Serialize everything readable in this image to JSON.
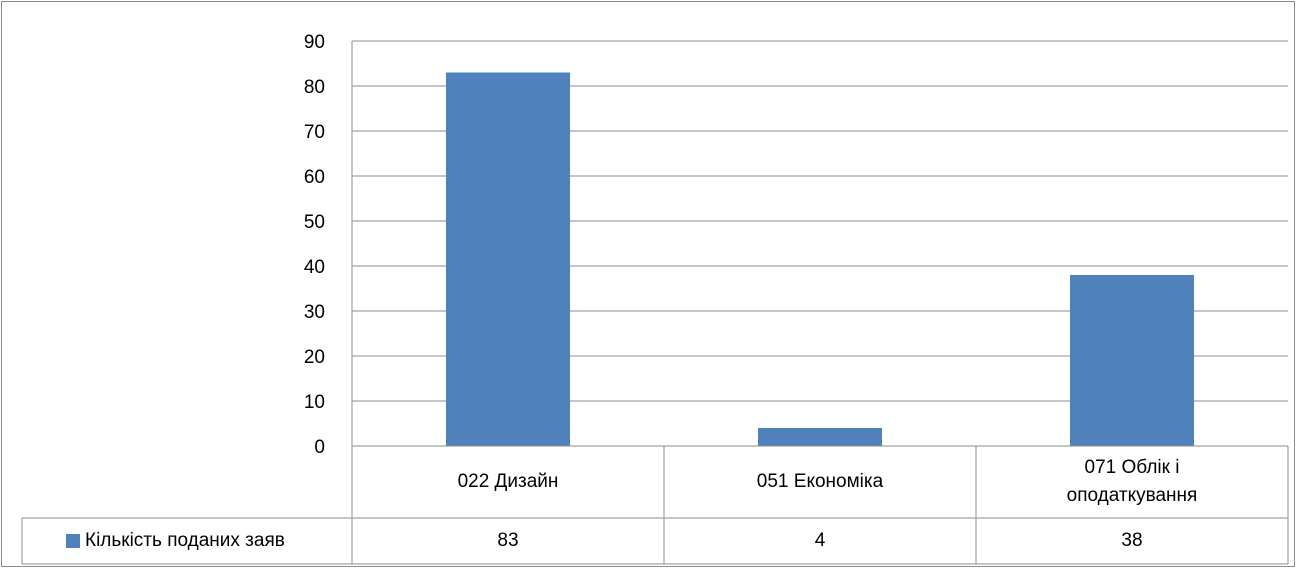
{
  "chart_data": {
    "type": "bar",
    "categories": [
      "022 Дизайн",
      "051 Економіка",
      "071 Облік і оподаткування"
    ],
    "series": [
      {
        "name": "Кількість поданих заяв",
        "values": [
          83,
          4,
          38
        ]
      }
    ],
    "series_label_shown": "Кількість поданих заяв",
    "value_labels": [
      "83",
      "4",
      "38"
    ],
    "ylim": [
      0,
      90
    ],
    "yticks": [
      0,
      10,
      20,
      30,
      40,
      50,
      60,
      70,
      80,
      90
    ],
    "grid": true,
    "legend": "data-table-left",
    "bar_color": "#4f81bd",
    "title": "",
    "xlabel": "",
    "ylabel": ""
  }
}
